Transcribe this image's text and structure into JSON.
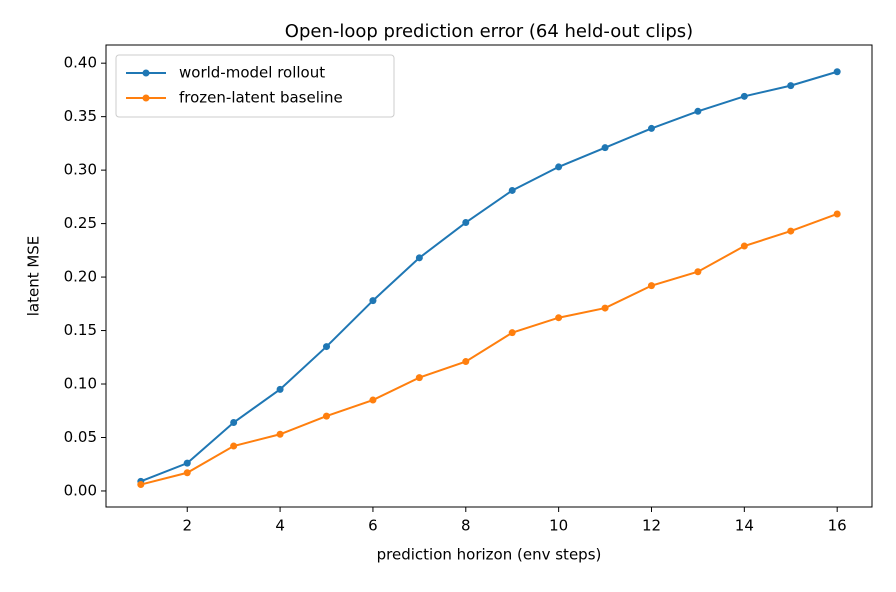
{
  "chart_data": {
    "type": "line",
    "title": "Open-loop prediction error (64 held-out clips)",
    "xlabel": "prediction horizon (env steps)",
    "ylabel": "latent MSE",
    "x": [
      1,
      2,
      3,
      4,
      5,
      6,
      7,
      8,
      9,
      10,
      11,
      12,
      13,
      14,
      15,
      16
    ],
    "series": [
      {
        "name": "world-model rollout",
        "color": "#1f77b4",
        "values": [
          0.009,
          0.026,
          0.064,
          0.095,
          0.135,
          0.178,
          0.218,
          0.251,
          0.281,
          0.303,
          0.321,
          0.339,
          0.355,
          0.369,
          0.379,
          0.392
        ]
      },
      {
        "name": "frozen-latent baseline",
        "color": "#ff7f0e",
        "values": [
          0.006,
          0.017,
          0.042,
          0.053,
          0.07,
          0.085,
          0.106,
          0.121,
          0.148,
          0.162,
          0.171,
          0.192,
          0.205,
          0.229,
          0.243,
          0.259
        ]
      }
    ],
    "xlim": [
      0.25,
      16.75
    ],
    "ylim": [
      -0.015,
      0.417
    ],
    "xticks": [
      2,
      4,
      6,
      8,
      10,
      12,
      14,
      16
    ],
    "yticks": [
      {
        "value": 0,
        "label": "0.00"
      },
      {
        "value": 0.05,
        "label": "0.05"
      },
      {
        "value": 0.1,
        "label": "0.10"
      },
      {
        "value": 0.15,
        "label": "0.15"
      },
      {
        "value": 0.2,
        "label": "0.20"
      },
      {
        "value": 0.25,
        "label": "0.25"
      },
      {
        "value": 0.3,
        "label": "0.30"
      },
      {
        "value": 0.35,
        "label": "0.35"
      },
      {
        "value": 0.4,
        "label": "0.40"
      }
    ],
    "legend": "upper left",
    "grid": false
  }
}
